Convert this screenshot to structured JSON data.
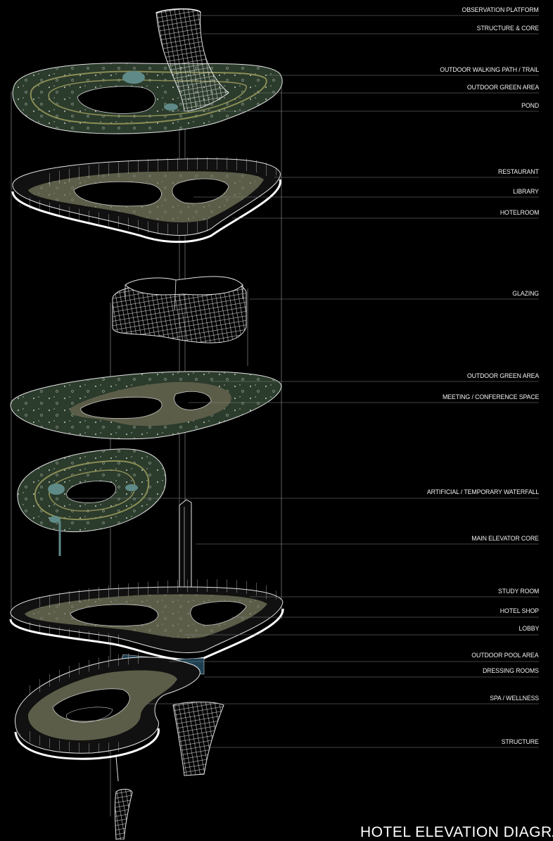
{
  "diagram": {
    "title": "HOTEL ELEVATION DIAGRAM",
    "colors": {
      "background": "#000000",
      "line": "#cfd6cf",
      "green_area": "#2b3b2c",
      "path": "#8a8d55",
      "floor": "#5c5d48",
      "pond": "#5f8a88",
      "pool": "#1c3f52"
    },
    "labels": [
      {
        "id": "observation-platform",
        "text": "OBSERVATION PLATFORM"
      },
      {
        "id": "structure-core",
        "text": "STRUCTURE & CORE"
      },
      {
        "id": "outdoor-walking-path",
        "text": "OUTDOOR WALKING PATH / TRAIL"
      },
      {
        "id": "outdoor-green-area-top",
        "text": "OUTDOOR GREEN AREA"
      },
      {
        "id": "pond",
        "text": "POND"
      },
      {
        "id": "restaurant",
        "text": "RESTAURANT"
      },
      {
        "id": "library",
        "text": "LIBRARY"
      },
      {
        "id": "hotelroom",
        "text": "HOTELROOM"
      },
      {
        "id": "glazing",
        "text": "GLAZING"
      },
      {
        "id": "outdoor-green-area-mid",
        "text": "OUTDOOR GREEN AREA"
      },
      {
        "id": "meeting-conference",
        "text": "MEETING / CONFERENCE SPACE"
      },
      {
        "id": "waterfall",
        "text": "ARTIFICIAL / TEMPORARY WATERFALL"
      },
      {
        "id": "main-elevator-core",
        "text": "MAIN ELEVATOR CORE"
      },
      {
        "id": "study-room",
        "text": "STUDY ROOM"
      },
      {
        "id": "hotel-shop",
        "text": "HOTEL SHOP"
      },
      {
        "id": "lobby",
        "text": "LOBBY"
      },
      {
        "id": "outdoor-pool-area",
        "text": "OUTDOOR POOL AREA"
      },
      {
        "id": "dressing-rooms",
        "text": "DRESSING ROOMS"
      },
      {
        "id": "spa-wellness",
        "text": "SPA / WELLNESS"
      },
      {
        "id": "structure",
        "text": "STRUCTURE"
      }
    ]
  }
}
